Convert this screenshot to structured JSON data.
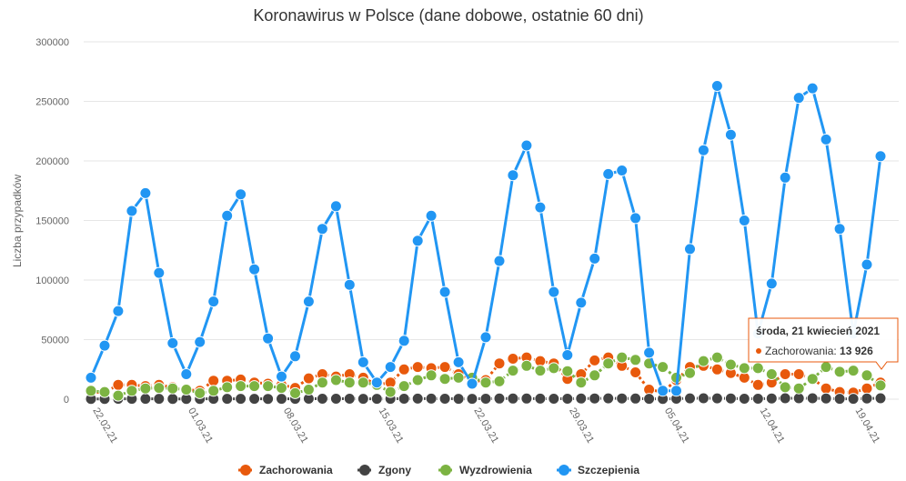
{
  "chart_data": {
    "type": "line",
    "title": "Koronawirus w Polsce (dane dobowe, ostatnie 60 dni)",
    "ylabel": "Liczba przypadków",
    "ylim": [
      0,
      300000
    ],
    "y_ticks": [
      "0",
      "50000",
      "100000",
      "150000",
      "200000",
      "250000",
      "300000"
    ],
    "x": [
      "2021-02-22",
      "2021-02-23",
      "2021-02-24",
      "2021-02-25",
      "2021-02-26",
      "2021-02-27",
      "2021-02-28",
      "2021-03-01",
      "2021-03-02",
      "2021-03-03",
      "2021-03-04",
      "2021-03-05",
      "2021-03-06",
      "2021-03-07",
      "2021-03-08",
      "2021-03-09",
      "2021-03-10",
      "2021-03-11",
      "2021-03-12",
      "2021-03-13",
      "2021-03-14",
      "2021-03-15",
      "2021-03-16",
      "2021-03-17",
      "2021-03-18",
      "2021-03-19",
      "2021-03-20",
      "2021-03-21",
      "2021-03-22",
      "2021-03-23",
      "2021-03-24",
      "2021-03-25",
      "2021-03-26",
      "2021-03-27",
      "2021-03-28",
      "2021-03-29",
      "2021-03-30",
      "2021-03-31",
      "2021-04-01",
      "2021-04-02",
      "2021-04-03",
      "2021-04-04",
      "2021-04-05",
      "2021-04-06",
      "2021-04-07",
      "2021-04-08",
      "2021-04-09",
      "2021-04-10",
      "2021-04-11",
      "2021-04-12",
      "2021-04-13",
      "2021-04-14",
      "2021-04-15",
      "2021-04-16",
      "2021-04-17",
      "2021-04-18",
      "2021-04-19",
      "2021-04-20",
      "2021-04-21"
    ],
    "x_tick_labels": [
      {
        "index": 0,
        "label": "22.02.21"
      },
      {
        "index": 7,
        "label": "01.03.21"
      },
      {
        "index": 14,
        "label": "08.03.21"
      },
      {
        "index": 21,
        "label": "15.03.21"
      },
      {
        "index": 28,
        "label": "22.03.21"
      },
      {
        "index": 35,
        "label": "29.03.21"
      },
      {
        "index": 42,
        "label": "05.04.21"
      },
      {
        "index": 49,
        "label": "12.04.21"
      },
      {
        "index": 56,
        "label": "19.04.21"
      }
    ],
    "series": [
      {
        "name": "Zachorowania",
        "color": "#e8590c",
        "values": [
          6000,
          5500,
          12000,
          12000,
          11000,
          12000,
          10000,
          8000,
          7000,
          15500,
          15500,
          16500,
          14000,
          13000,
          12000,
          9500,
          17500,
          21000,
          19000,
          21000,
          18000,
          12000,
          14000,
          25000,
          27000,
          26000,
          27000,
          21000,
          14500,
          16000,
          30000,
          34000,
          35000,
          32000,
          30000,
          17000,
          21000,
          32500,
          35000,
          28000,
          22500,
          8000,
          6000,
          16000,
          27000,
          28000,
          25000,
          22000,
          18000,
          12000,
          14000,
          21000,
          21000,
          17000,
          9000,
          6000,
          5500,
          9000,
          13926
        ]
      },
      {
        "name": "Zgony",
        "color": "#434343",
        "values": [
          200,
          200,
          300,
          300,
          300,
          300,
          200,
          200,
          200,
          300,
          300,
          300,
          300,
          200,
          300,
          300,
          400,
          400,
          400,
          400,
          300,
          300,
          300,
          400,
          450,
          450,
          400,
          300,
          300,
          400,
          500,
          500,
          500,
          450,
          350,
          350,
          500,
          600,
          650,
          600,
          500,
          300,
          250,
          400,
          700,
          750,
          700,
          600,
          400,
          350,
          600,
          800,
          800,
          750,
          600,
          300,
          300,
          600,
          800
        ]
      },
      {
        "name": "Wyzdrowienia",
        "color": "#7cb342",
        "values": [
          7000,
          6000,
          3000,
          7000,
          9000,
          9500,
          9000,
          8000,
          5000,
          7000,
          10000,
          11000,
          11000,
          11000,
          9500,
          5000,
          8000,
          14000,
          16000,
          14000,
          14000,
          12000,
          6000,
          11000,
          16000,
          20000,
          17000,
          18000,
          18000,
          14000,
          15000,
          24000,
          28000,
          24000,
          26000,
          23500,
          14000,
          20000,
          30000,
          35000,
          33000,
          30000,
          27000,
          18000,
          22000,
          32000,
          35000,
          29000,
          26000,
          26000,
          21000,
          10000,
          9000,
          17000,
          27000,
          23000,
          24000,
          20000,
          11500
        ]
      },
      {
        "name": "Szczepienia",
        "color": "#2196f3",
        "values": [
          18000,
          45000,
          74000,
          158000,
          173000,
          106000,
          47000,
          21000,
          48000,
          82000,
          154000,
          172000,
          109000,
          51000,
          19000,
          36000,
          82000,
          143000,
          162000,
          96000,
          31000,
          14000,
          27000,
          49000,
          133000,
          154000,
          90000,
          31000,
          13000,
          52000,
          116000,
          188000,
          213000,
          161000,
          90000,
          37000,
          81000,
          118000,
          189000,
          192000,
          152000,
          39000,
          7000,
          7000,
          126000,
          209000,
          263000,
          222000,
          150000,
          55000,
          97000,
          186000,
          253000,
          261000,
          218000,
          143000,
          55000,
          113000,
          204000
        ]
      }
    ],
    "legend_position": "bottom",
    "tooltip": {
      "title": "środa, 21 kwiecień 2021",
      "series": "Zachorowania",
      "value_text": "13 926"
    }
  }
}
